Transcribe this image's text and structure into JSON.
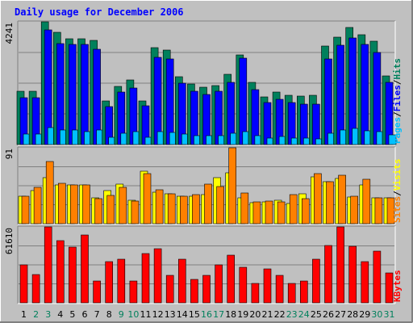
{
  "chart_data": [
    {
      "type": "bar",
      "title": "Daily usage for December 2006",
      "x": [
        "1",
        "2",
        "3",
        "4",
        "5",
        "6",
        "7",
        "8",
        "9",
        "10",
        "11",
        "12",
        "13",
        "14",
        "15",
        "16",
        "17",
        "18",
        "19",
        "20",
        "21",
        "22",
        "23",
        "24",
        "25",
        "26",
        "27",
        "28",
        "29",
        "30",
        "31"
      ],
      "weekend_days": [
        "2",
        "3",
        "9",
        "10",
        "16",
        "17",
        "23",
        "24",
        "30",
        "31"
      ],
      "y_tick": "4241",
      "ylim": [
        0,
        4241
      ],
      "legend": [
        "Pages",
        "Files",
        "Hits"
      ],
      "legend_position": "right",
      "series": [
        {
          "name": "Hits",
          "color": "#00805c",
          "values": [
            1850,
            1850,
            4241,
            3870,
            3660,
            3660,
            3600,
            1520,
            2000,
            2230,
            1520,
            3350,
            3270,
            2330,
            2100,
            1970,
            2050,
            2440,
            3100,
            2140,
            1650,
            1800,
            1700,
            1670,
            1700,
            3410,
            3720,
            4050,
            3790,
            3560,
            2370
          ]
        },
        {
          "name": "Files",
          "color": "#0000ff",
          "values": [
            1620,
            1620,
            3950,
            3500,
            3450,
            3450,
            3300,
            1300,
            1800,
            1950,
            1350,
            3000,
            2970,
            2130,
            1850,
            1720,
            1850,
            2150,
            2980,
            1910,
            1440,
            1550,
            1460,
            1400,
            1400,
            2950,
            3420,
            3680,
            3450,
            3190,
            2150
          ]
        },
        {
          "name": "Pages",
          "color": "#00c0ff",
          "values": [
            350,
            350,
            580,
            500,
            500,
            450,
            500,
            250,
            400,
            450,
            250,
            450,
            420,
            350,
            300,
            320,
            300,
            380,
            450,
            300,
            230,
            280,
            230,
            230,
            200,
            400,
            500,
            550,
            480,
            460,
            330
          ]
        }
      ],
      "label_colors": {
        "Pages": "#00c0ff",
        "Files": "#0000ff",
        "Hits": "#00805c",
        "separator": "#000000"
      }
    },
    {
      "type": "bar",
      "x": [
        "1",
        "2",
        "3",
        "4",
        "5",
        "6",
        "7",
        "8",
        "9",
        "10",
        "11",
        "12",
        "13",
        "14",
        "15",
        "16",
        "17",
        "18",
        "19",
        "20",
        "21",
        "22",
        "23",
        "24",
        "25",
        "26",
        "27",
        "28",
        "29",
        "30",
        "31"
      ],
      "y_tick": "91",
      "ylim": [
        0,
        91
      ],
      "legend": [
        "Sites",
        "Visits"
      ],
      "legend_position": "right",
      "series": [
        {
          "name": "Visits",
          "color": "#ffff00",
          "values": [
            33,
            40,
            55,
            46,
            46,
            46,
            31,
            40,
            47,
            28,
            63,
            38,
            36,
            33,
            33,
            35,
            55,
            61,
            31,
            25,
            26,
            28,
            24,
            36,
            56,
            50,
            54,
            32,
            46,
            31,
            31
          ]
        },
        {
          "name": "Sites",
          "color": "#ff8000",
          "values": [
            33,
            44,
            75,
            48,
            46,
            46,
            30,
            34,
            44,
            27,
            60,
            41,
            36,
            33,
            35,
            47,
            45,
            91,
            37,
            26,
            27,
            26,
            35,
            30,
            60,
            50,
            58,
            33,
            53,
            31,
            31
          ]
        }
      ],
      "label_colors": {
        "Sites": "#ff8000",
        "Visits": "#ffff00",
        "separator": "#000000"
      }
    },
    {
      "type": "bar",
      "x": [
        "1",
        "2",
        "3",
        "4",
        "5",
        "6",
        "7",
        "8",
        "9",
        "10",
        "11",
        "12",
        "13",
        "14",
        "15",
        "16",
        "17",
        "18",
        "19",
        "20",
        "21",
        "22",
        "23",
        "24",
        "25",
        "26",
        "27",
        "28",
        "29",
        "30",
        "31"
      ],
      "y_tick": "61610",
      "ylim": [
        0,
        61610
      ],
      "legend": [
        "KBytes"
      ],
      "legend_position": "right",
      "series": [
        {
          "name": "KBytes",
          "color": "#ff0000",
          "values": [
            31000,
            23000,
            61610,
            50500,
            45500,
            55200,
            17500,
            33500,
            35500,
            18000,
            40000,
            43600,
            22300,
            35600,
            19000,
            22000,
            30500,
            38700,
            29000,
            16000,
            27500,
            22000,
            16000,
            18000,
            35700,
            46500,
            61610,
            46000,
            33500,
            42000,
            24500
          ]
        }
      ],
      "label_colors": {
        "KBytes": "#ff0000"
      }
    }
  ],
  "colors": {
    "page_bg": "#c0c0c0",
    "plot_bg": "#c0c0c0",
    "title": "#0000ff",
    "weekday_label": "#000000",
    "weekend_label": "#00805c",
    "grid": "#7f7f7f",
    "bevel_light": "#ffffff",
    "bevel_dark": "#808080",
    "bar_outline": "#000000"
  }
}
